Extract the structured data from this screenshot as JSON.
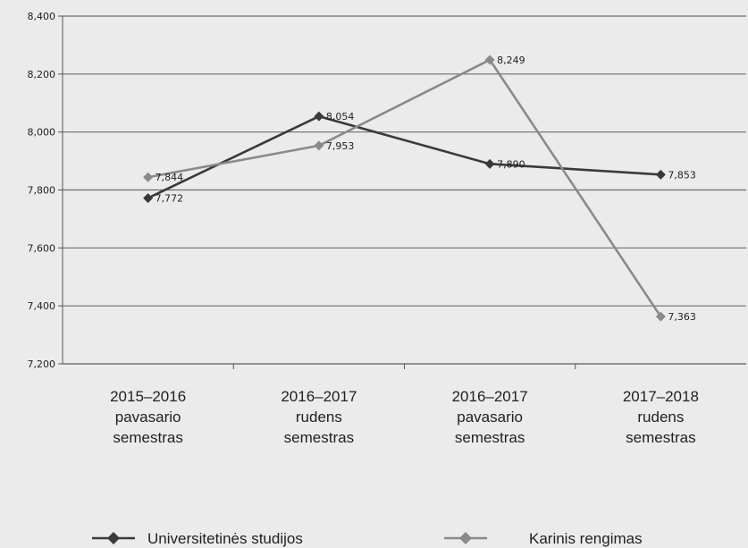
{
  "chart_data": {
    "type": "line",
    "title": "",
    "xlabel": "",
    "ylabel": "",
    "categories": [
      [
        "2015–2016",
        "pavasario",
        "semestras"
      ],
      [
        "2016–2017",
        "rudens",
        "semestras"
      ],
      [
        "2016–2017",
        "pavasario",
        "semestras"
      ],
      [
        "2017–2018",
        "rudens",
        "semestras"
      ]
    ],
    "ylim": [
      7.2,
      8.4
    ],
    "yticks": [
      7.2,
      7.4,
      7.6,
      7.8,
      8.0,
      8.2,
      8.4
    ],
    "ytick_labels": [
      "7,200",
      "7,400",
      "7,600",
      "7,800",
      "8,000",
      "8,200",
      "8,400"
    ],
    "grid": true,
    "legend_position": "bottom",
    "series": [
      {
        "name": "Universitetinės studijos",
        "color": "#3a3a3a",
        "marker": "diamond",
        "values": [
          7.772,
          8.054,
          7.89,
          7.853
        ],
        "labels": [
          "7,772",
          "8,054",
          "7,890",
          "7,853"
        ]
      },
      {
        "name": "Karinis rengimas",
        "color": "#8a8a8a",
        "marker": "diamond",
        "values": [
          7.844,
          7.953,
          8.249,
          7.363
        ],
        "labels": [
          "7,844",
          "7,953",
          "8,249",
          "7,363"
        ]
      }
    ]
  }
}
